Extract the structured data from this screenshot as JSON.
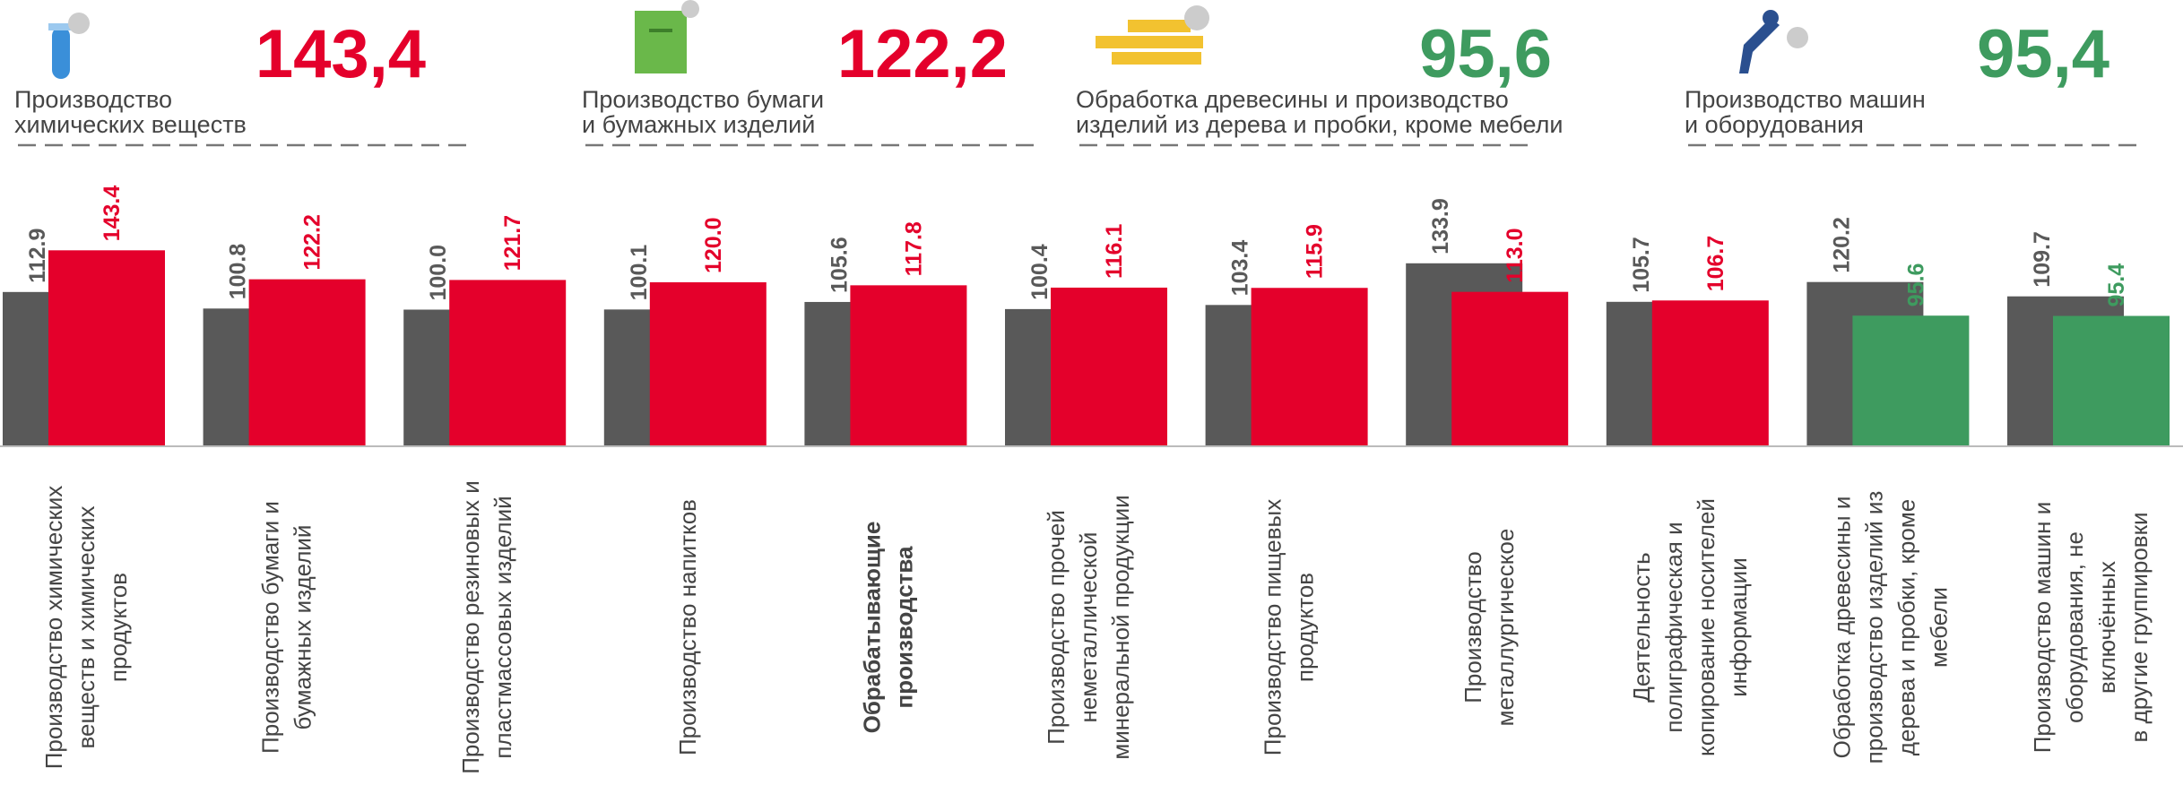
{
  "header": {
    "kpis": [
      {
        "label": [
          "Производство",
          "химических веществ"
        ],
        "value": "143,4",
        "color": "#e4002b"
      },
      {
        "label": [
          "Производство бумаги",
          "и бумажных изделий"
        ],
        "value": "122,2",
        "color": "#e4002b"
      },
      {
        "label": [
          "Обработка древесины и производство",
          "изделий из дерева и пробки, кроме мебели"
        ],
        "value": "95,6",
        "color": "#3e9b5f"
      },
      {
        "label": [
          "Производство машин",
          "и оборудования"
        ],
        "value": "95,4",
        "color": "#3e9b5f"
      }
    ]
  },
  "chart_data": {
    "type": "bar",
    "categories": [
      [
        "Производство химических",
        "веществ и химических",
        "продуктов"
      ],
      [
        "Производство бумаги и",
        "бумажных изделий"
      ],
      [
        "Производство резиновых и",
        "пластмассовых изделий"
      ],
      [
        "Производство напитков"
      ],
      [
        "Обрабатывающие",
        "производства"
      ],
      [
        "Производство прочей",
        "неметаллической",
        "минеральной продукции"
      ],
      [
        "Производство пищевых",
        "продуктов"
      ],
      [
        "Производство",
        "металлургическое"
      ],
      [
        "Деятельность",
        "полиграфическая и",
        "копирование носителей",
        "информации"
      ],
      [
        "Обработка древесины и",
        "производство изделий из",
        "дерева и пробки, кроме",
        "мебели"
      ],
      [
        "Производство машин и",
        "оборудования, не",
        "включённых",
        "в другие группировки"
      ]
    ],
    "highlight_category": 4,
    "series": [
      {
        "color": "#595959",
        "label_color": "#595959",
        "values": [
          112.9,
          100.8,
          100.0,
          100.1,
          105.6,
          100.4,
          103.4,
          133.9,
          105.7,
          120.2,
          109.7
        ],
        "value_labels": [
          "112.9",
          "100.8",
          "100.0",
          "100.1",
          "105.6",
          "100.4",
          "103.4",
          "133.9",
          "105.7",
          "120.2",
          "109.7"
        ]
      },
      {
        "colors": [
          "#e4002b",
          "#e4002b",
          "#e4002b",
          "#e4002b",
          "#e4002b",
          "#e4002b",
          "#e4002b",
          "#e4002b",
          "#e4002b",
          "#3e9b5f",
          "#3e9b5f"
        ],
        "values": [
          143.4,
          122.2,
          121.7,
          120.0,
          117.8,
          116.1,
          115.9,
          113.0,
          106.7,
          95.6,
          95.4
        ],
        "value_labels": [
          "143.4",
          "122.2",
          "121.7",
          "120.0",
          "117.8",
          "116.1",
          "115.9",
          "113.0",
          "106.7",
          "95.6",
          "95.4"
        ]
      }
    ],
    "ylim": [
      0,
      200
    ]
  }
}
